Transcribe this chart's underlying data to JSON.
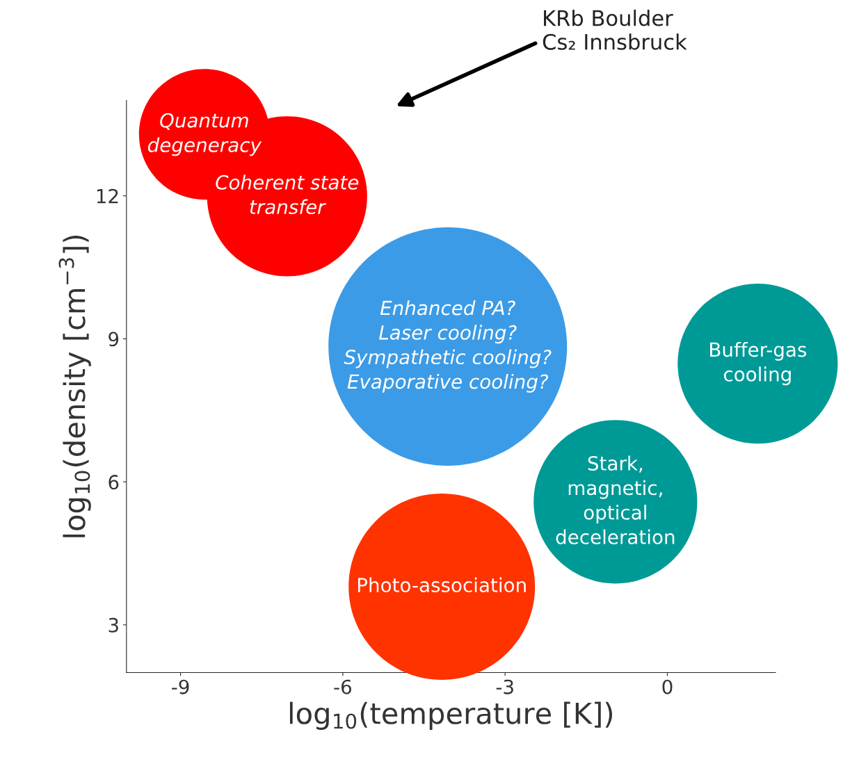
{
  "chart_data": {
    "type": "bubble",
    "xlabel": "log$_{10}$(temperature [K])",
    "ylabel": "log$_{10}$(density [cm$^{−3}$])",
    "x": [
      -8.56,
      -7.03,
      -4.06,
      1.67,
      -0.96,
      -4.17
    ],
    "values": [
      13.29,
      11.99,
      8.84,
      8.48,
      5.58,
      3.8
    ],
    "sizes": [
      0.3,
      0.45,
      1,
      0.45,
      0.47,
      0.61
    ],
    "colors": [
      "#ff0000",
      "#ff0000",
      "#3c9be6",
      "#009a96",
      "#009a96",
      "#ff3300"
    ],
    "xlim": [
      -10,
      2
    ],
    "xticks": [
      -9,
      -6,
      -3,
      0
    ],
    "ylim": [
      2,
      14
    ],
    "yticks": [
      3,
      6,
      9,
      12
    ],
    "grid": false,
    "legend": false,
    "annotations": [
      {
        "text": "Quantum\ndegeneracy",
        "x": -8.56,
        "y": 13.29
      },
      {
        "text": "Coherent state\ntransfer",
        "x": -7.03,
        "y": 11.99
      },
      {
        "text": "Enhanced PA?\nLaser cooling?\nSympathetic cooling?\nEvaporative cooling?",
        "x": -4.06,
        "y": 8.84
      },
      {
        "text": "Buffer-gas\ncooling",
        "x": 1.67,
        "y": 8.48
      },
      {
        "text": "Stark,\nmagnetic,\noptical\ndeceleration",
        "x": -0.96,
        "y": 5.58
      },
      {
        "text": "Photo-association",
        "x": -4.17,
        "y": 3.8
      },
      "KRb Boulder\nCs₂ Innsbruck"
    ]
  }
}
